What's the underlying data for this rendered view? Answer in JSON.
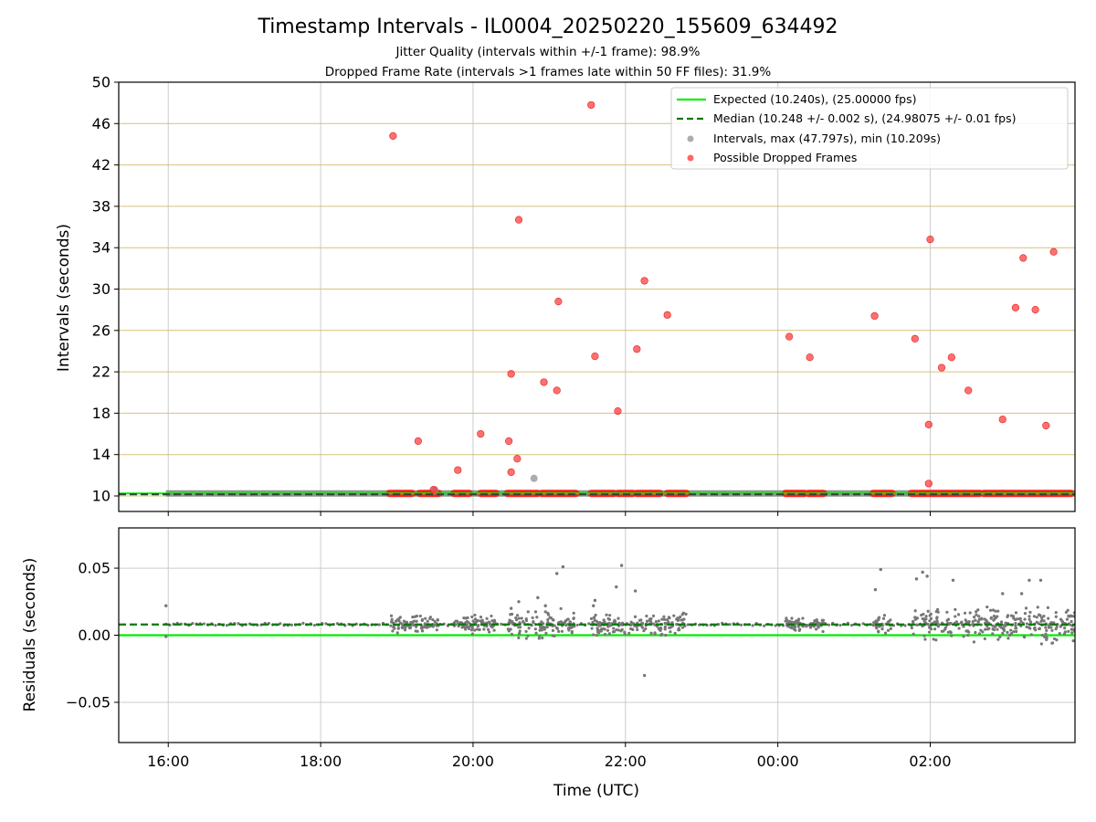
{
  "chart_data": [
    {
      "type": "scatter",
      "title": "Timestamp Intervals - IL0004_20250220_155609_634492",
      "subtitle_1": "Jitter Quality (intervals within +/-1 frame): 98.9%",
      "subtitle_2": "Dropped Frame Rate (intervals >1 frames late within 50 FF files): 31.9%",
      "ylabel": "Intervals (seconds)",
      "ylim": [
        8.5,
        50
      ],
      "yticks": [
        "10",
        "14",
        "18",
        "22",
        "26",
        "30",
        "34",
        "38",
        "42",
        "46",
        "50"
      ],
      "grid": "horizontal",
      "legend_position": "top-right",
      "legend": [
        {
          "label": "Expected (10.240s), (25.00000 fps)",
          "style": "solid-line",
          "color": "#00ee00"
        },
        {
          "label": "Median (10.248 +/- 0.002 s), (24.98075 +/- 0.01 fps)",
          "style": "dashed-line",
          "color": "#007a00"
        },
        {
          "label": "Intervals, max (47.797s), min (10.209s)",
          "style": "marker",
          "color": "#999999"
        },
        {
          "label": "Possible Dropped Frames",
          "style": "marker",
          "color": "#ff3333"
        }
      ],
      "expected": 10.24,
      "median": 10.248,
      "dropped_points": [
        [
          18.95,
          44.8
        ],
        [
          19.28,
          15.3
        ],
        [
          19.48,
          10.6
        ],
        [
          19.8,
          12.5
        ],
        [
          20.1,
          16.0
        ],
        [
          20.47,
          15.3
        ],
        [
          20.5,
          21.8
        ],
        [
          20.5,
          12.3
        ],
        [
          20.58,
          13.6
        ],
        [
          20.6,
          36.7
        ],
        [
          20.93,
          21.0
        ],
        [
          21.1,
          20.2
        ],
        [
          21.12,
          28.8
        ],
        [
          21.55,
          47.8
        ],
        [
          21.6,
          23.5
        ],
        [
          21.9,
          18.2
        ],
        [
          22.15,
          24.2
        ],
        [
          22.25,
          30.8
        ],
        [
          22.55,
          27.5
        ],
        [
          24.15,
          25.4
        ],
        [
          24.42,
          23.4
        ],
        [
          25.27,
          27.4
        ],
        [
          25.8,
          25.2
        ],
        [
          25.98,
          16.9
        ],
        [
          25.98,
          11.2
        ],
        [
          26.0,
          34.8
        ],
        [
          26.15,
          22.4
        ],
        [
          26.28,
          23.4
        ],
        [
          26.5,
          20.2
        ],
        [
          26.95,
          17.4
        ],
        [
          27.12,
          28.2
        ],
        [
          27.22,
          33.0
        ],
        [
          27.38,
          28.0
        ],
        [
          27.52,
          16.8
        ],
        [
          27.62,
          33.6
        ]
      ],
      "normal_points": [
        [
          20.8,
          11.7
        ],
        [
          19.5,
          10.6
        ]
      ],
      "dropped_baseline_clusters": [
        [
          18.9,
          19.2
        ],
        [
          19.3,
          19.55
        ],
        [
          19.75,
          19.95
        ],
        [
          20.1,
          20.3
        ],
        [
          20.45,
          20.85
        ],
        [
          20.9,
          21.35
        ],
        [
          21.55,
          21.85
        ],
        [
          21.9,
          22.1
        ],
        [
          22.15,
          22.45
        ],
        [
          22.55,
          22.8
        ],
        [
          24.1,
          24.35
        ],
        [
          24.4,
          24.6
        ],
        [
          25.25,
          25.5
        ],
        [
          25.75,
          26.65
        ],
        [
          26.7,
          26.95
        ],
        [
          26.95,
          27.85
        ]
      ]
    },
    {
      "type": "scatter",
      "ylabel": "Residuals (seconds)",
      "xlabel": "Time (UTC)",
      "ylim": [
        -0.08,
        0.08
      ],
      "yticks": [
        "0.05",
        "0.00",
        "−0.05"
      ],
      "xticks": [
        "16:00",
        "18:00",
        "20:00",
        "22:00",
        "00:00",
        "02:00"
      ],
      "xtick_hours": [
        16,
        18,
        20,
        22,
        24,
        26
      ],
      "xlim_hours": [
        15.35,
        27.9
      ],
      "grid": "both",
      "expected_residual": 0.0,
      "median_residual": 0.008,
      "outliers": [
        [
          15.97,
          0.022
        ],
        [
          15.97,
          -0.001
        ],
        [
          20.5,
          0.02
        ],
        [
          20.6,
          0.025
        ],
        [
          20.85,
          0.028
        ],
        [
          20.95,
          0.022
        ],
        [
          21.1,
          0.046
        ],
        [
          21.18,
          0.051
        ],
        [
          21.58,
          0.022
        ],
        [
          21.6,
          0.026
        ],
        [
          21.88,
          0.036
        ],
        [
          21.95,
          0.052
        ],
        [
          22.13,
          0.033
        ],
        [
          22.25,
          -0.03
        ],
        [
          25.28,
          0.034
        ],
        [
          25.35,
          0.049
        ],
        [
          25.82,
          0.042
        ],
        [
          25.9,
          0.047
        ],
        [
          25.96,
          0.044
        ],
        [
          26.3,
          0.041
        ],
        [
          26.95,
          0.031
        ],
        [
          27.3,
          0.041
        ],
        [
          27.45,
          0.041
        ],
        [
          27.2,
          0.031
        ]
      ],
      "residual_clusters": [
        {
          "range": [
            18.9,
            19.55
          ],
          "spread": 0.006
        },
        {
          "range": [
            19.75,
            20.3
          ],
          "spread": 0.006
        },
        {
          "range": [
            20.45,
            21.35
          ],
          "spread": 0.01
        },
        {
          "range": [
            21.55,
            22.8
          ],
          "spread": 0.008
        },
        {
          "range": [
            24.1,
            24.6
          ],
          "spread": 0.005
        },
        {
          "range": [
            25.25,
            25.5
          ],
          "spread": 0.006
        },
        {
          "range": [
            25.75,
            27.9
          ],
          "spread": 0.012
        }
      ]
    }
  ]
}
